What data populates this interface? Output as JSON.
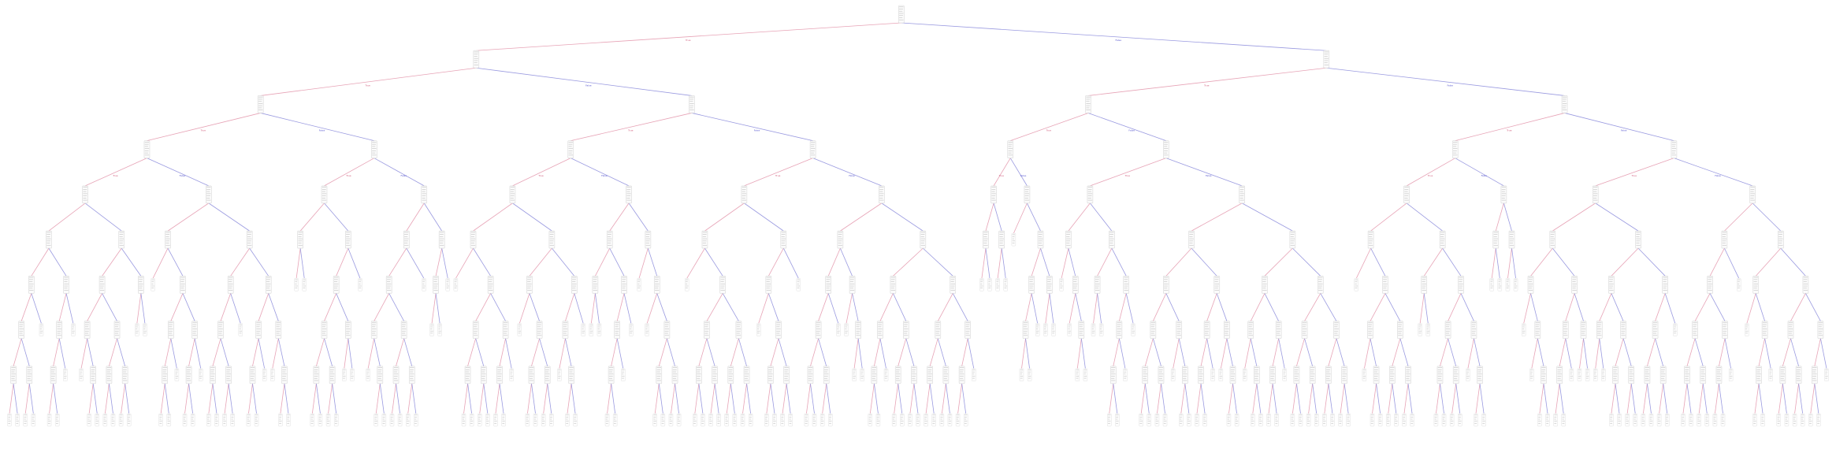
{
  "diagram": {
    "type": "decision-tree",
    "edge_labels": {
      "left": "True",
      "right": "False"
    },
    "colors": {
      "left_edge": "#e7a3b6",
      "right_edge": "#9a9ae0",
      "node_fill": "#fbfbfb",
      "node_border": "#d9d9d9"
    },
    "depth": 9
  }
}
